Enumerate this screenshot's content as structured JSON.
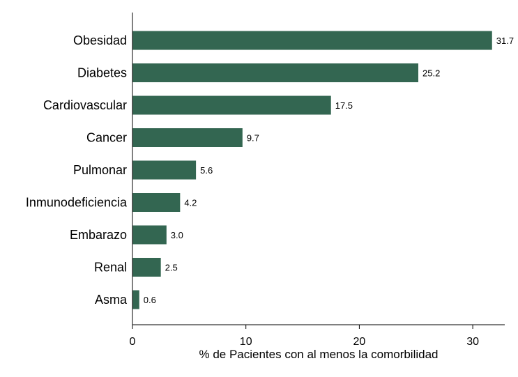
{
  "chart_data": {
    "type": "bar",
    "orientation": "horizontal",
    "categories": [
      "Obesidad",
      "Diabetes",
      "Cardiovascular",
      "Cancer",
      "Pulmonar",
      "Inmunodeficiencia",
      "Embarazo",
      "Renal",
      "Asma"
    ],
    "values": [
      31.7,
      25.2,
      17.5,
      9.7,
      5.6,
      4.2,
      3.0,
      2.5,
      0.6
    ],
    "value_labels": [
      "31.7",
      "25.2",
      "17.5",
      "9.7",
      "5.6",
      "4.2",
      "3.0",
      "2.5",
      "0.6"
    ],
    "xlabel": "% de Pacientes con al menos la comorbilidad",
    "ylabel": "",
    "title": "",
    "xlim": [
      0,
      32.8
    ],
    "xticks": [
      0,
      10,
      20,
      30
    ],
    "xtick_labels": [
      "0",
      "10",
      "20",
      "30"
    ],
    "bar_color": "#336651",
    "grid": false,
    "legend": "none"
  }
}
